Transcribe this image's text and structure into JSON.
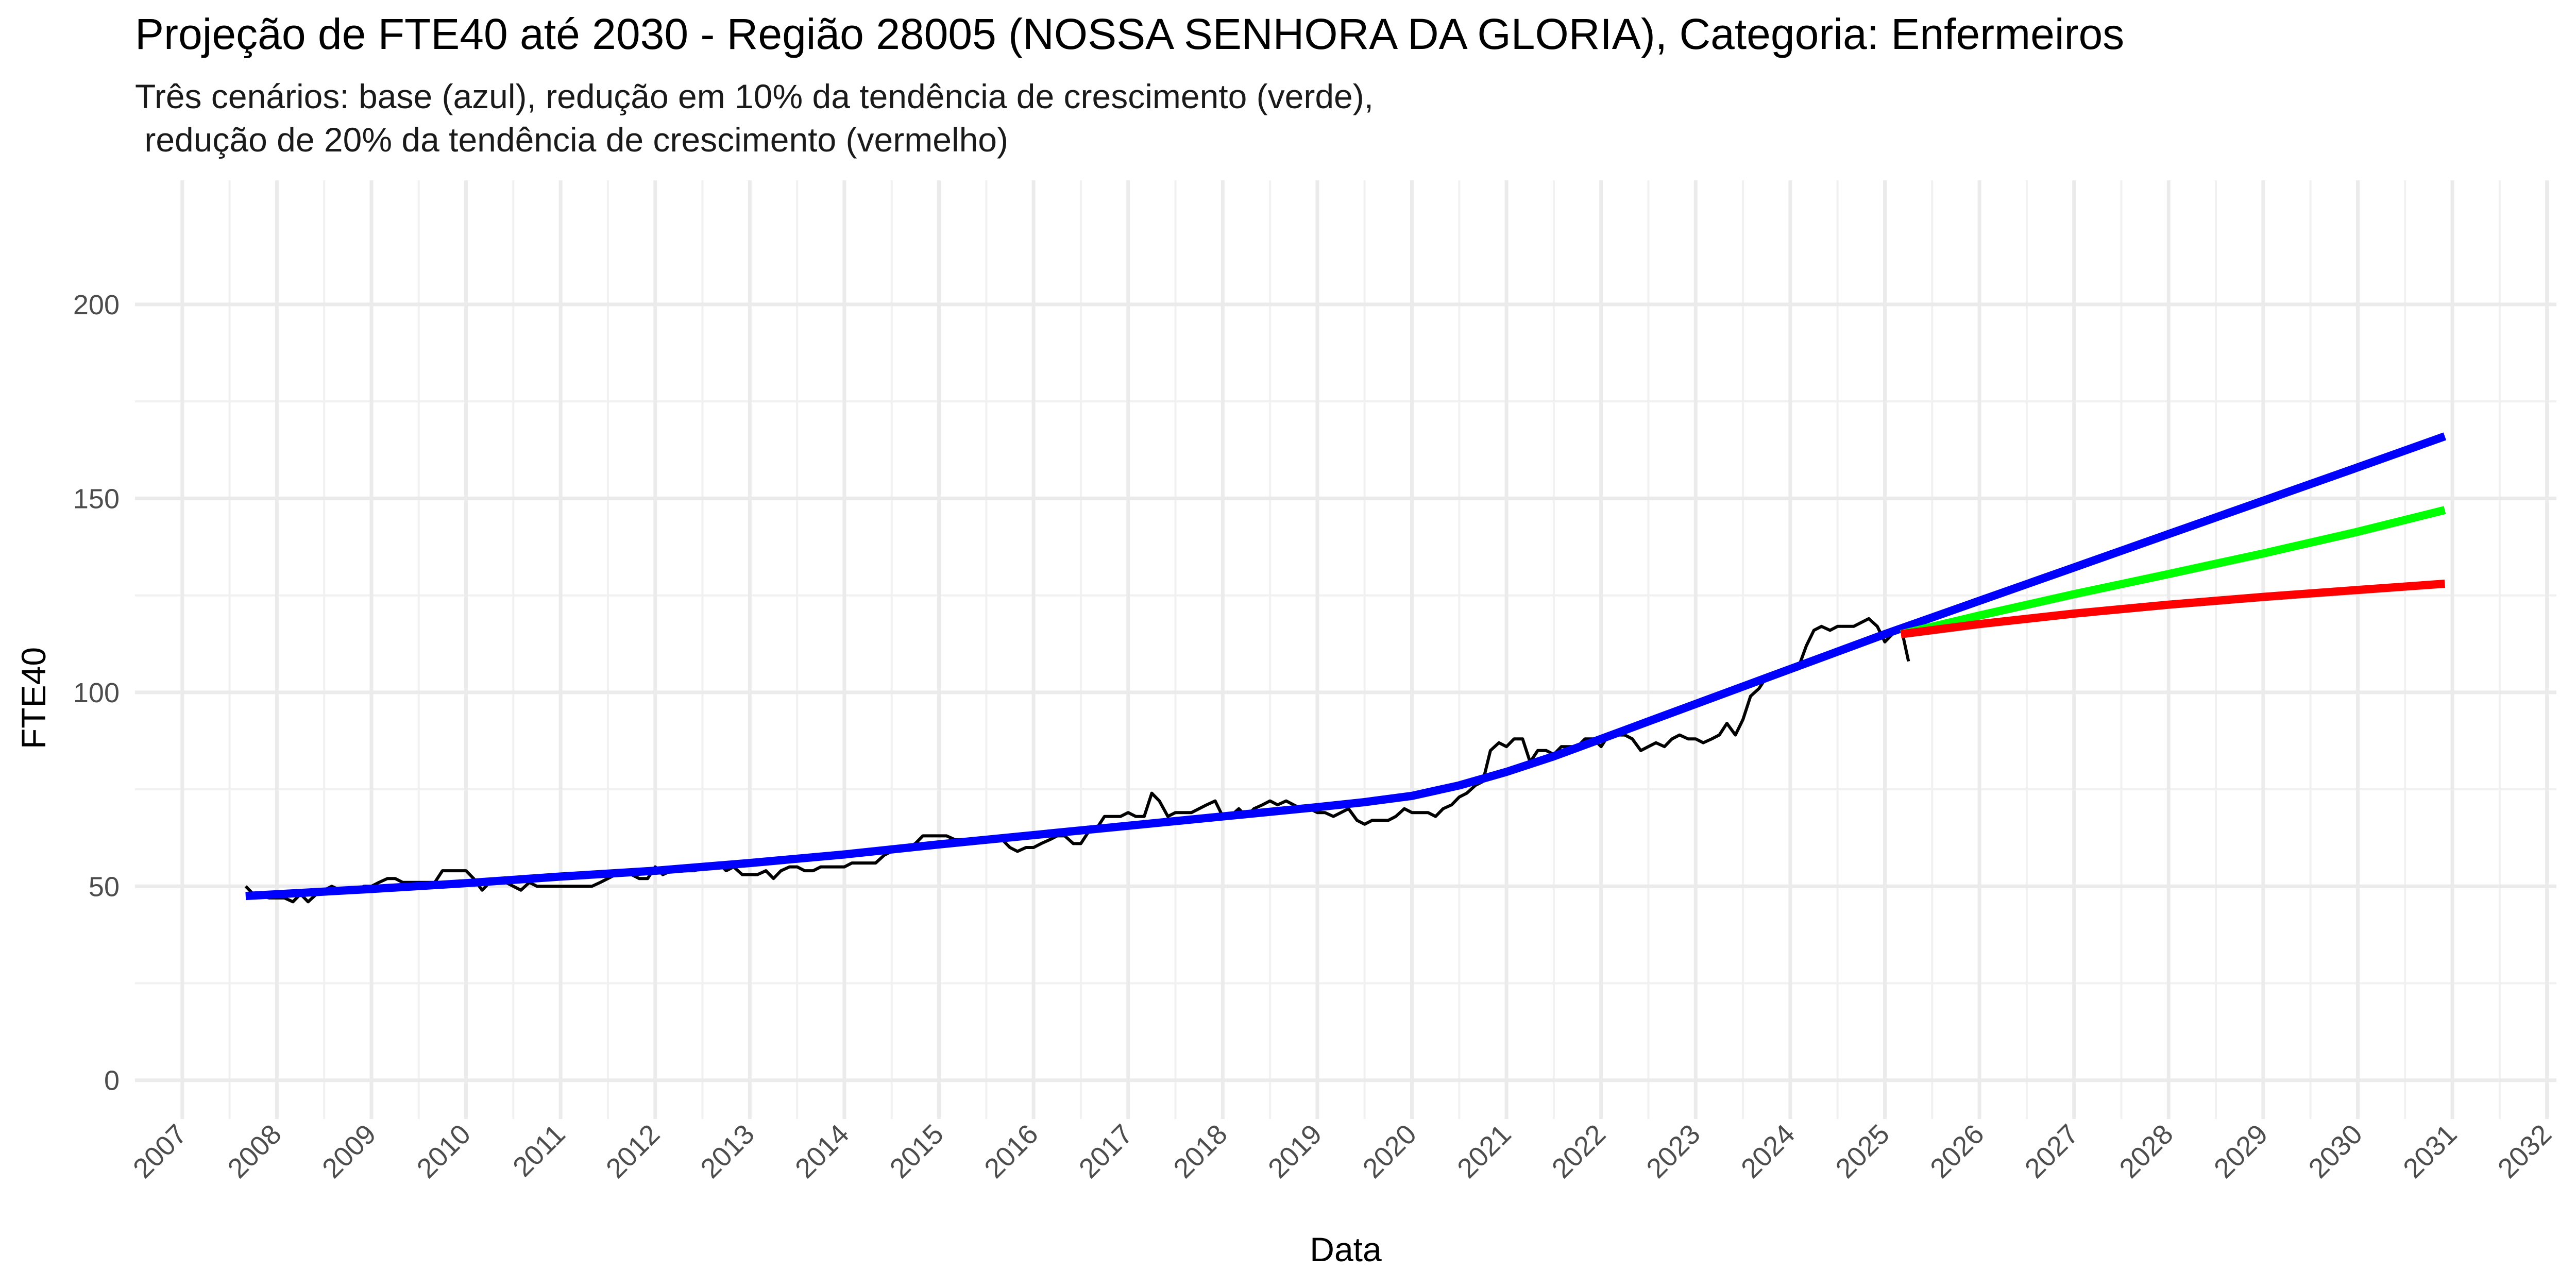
{
  "chart_data": {
    "type": "line",
    "title": "Projeção de FTE40 até 2030 - Região 28005 (NOSSA SENHORA DA GLORIA), Categoria: Enfermeiros",
    "subtitle": "Três cenários: base (azul), redução em 10% da tendência de crescimento (verde),\n redução de 20% da tendência de crescimento (vermelho)",
    "xlabel": "Data",
    "ylabel": "FTE40",
    "x_type": "date-year",
    "xlim": [
      2006.5,
      2032.1
    ],
    "ylim": [
      -10,
      232
    ],
    "x_ticks": [
      "2007",
      "2008",
      "2009",
      "2010",
      "2011",
      "2012",
      "2013",
      "2014",
      "2015",
      "2016",
      "2017",
      "2018",
      "2019",
      "2020",
      "2021",
      "2022",
      "2023",
      "2024",
      "2025",
      "2026",
      "2027",
      "2028",
      "2029",
      "2030",
      "2031",
      "2032"
    ],
    "y_ticks": [
      0,
      50,
      100,
      150,
      200
    ],
    "grid": true,
    "legend": "none",
    "series": [
      {
        "color": "#000000",
        "points": [
          [
            2007.67,
            50
          ],
          [
            2007.75,
            48
          ],
          [
            2007.92,
            47
          ],
          [
            2008.0,
            47
          ],
          [
            2008.08,
            47
          ],
          [
            2008.17,
            46
          ],
          [
            2008.25,
            48
          ],
          [
            2008.33,
            46
          ],
          [
            2008.42,
            48
          ],
          [
            2008.5,
            49
          ],
          [
            2008.58,
            50
          ],
          [
            2008.67,
            49
          ],
          [
            2008.75,
            49
          ],
          [
            2008.83,
            49
          ],
          [
            2008.92,
            50
          ],
          [
            2009.0,
            50
          ],
          [
            2009.08,
            51
          ],
          [
            2009.17,
            52
          ],
          [
            2009.25,
            52
          ],
          [
            2009.33,
            51
          ],
          [
            2009.42,
            51
          ],
          [
            2009.5,
            51
          ],
          [
            2009.58,
            51
          ],
          [
            2009.67,
            51
          ],
          [
            2009.75,
            54
          ],
          [
            2009.83,
            54
          ],
          [
            2009.92,
            54
          ],
          [
            2010.0,
            54
          ],
          [
            2010.08,
            52
          ],
          [
            2010.17,
            49
          ],
          [
            2010.25,
            51
          ],
          [
            2010.33,
            51
          ],
          [
            2010.42,
            51
          ],
          [
            2010.5,
            50
          ],
          [
            2010.58,
            49
          ],
          [
            2010.67,
            51
          ],
          [
            2010.75,
            50
          ],
          [
            2010.83,
            50
          ],
          [
            2010.92,
            50
          ],
          [
            2011.0,
            50
          ],
          [
            2011.08,
            50
          ],
          [
            2011.17,
            50
          ],
          [
            2011.25,
            50
          ],
          [
            2011.33,
            50
          ],
          [
            2011.42,
            51
          ],
          [
            2011.5,
            52
          ],
          [
            2011.58,
            53
          ],
          [
            2011.67,
            53
          ],
          [
            2011.75,
            53
          ],
          [
            2011.83,
            52
          ],
          [
            2011.92,
            52
          ],
          [
            2012.0,
            55
          ],
          [
            2012.08,
            53
          ],
          [
            2012.17,
            54
          ],
          [
            2012.25,
            54
          ],
          [
            2012.33,
            54
          ],
          [
            2012.42,
            54
          ],
          [
            2012.5,
            55
          ],
          [
            2012.58,
            55
          ],
          [
            2012.67,
            56
          ],
          [
            2012.75,
            54
          ],
          [
            2012.83,
            55
          ],
          [
            2012.92,
            53
          ],
          [
            2013.0,
            53
          ],
          [
            2013.08,
            53
          ],
          [
            2013.17,
            54
          ],
          [
            2013.25,
            52
          ],
          [
            2013.33,
            54
          ],
          [
            2013.42,
            55
          ],
          [
            2013.5,
            55
          ],
          [
            2013.58,
            54
          ],
          [
            2013.67,
            54
          ],
          [
            2013.75,
            55
          ],
          [
            2013.83,
            55
          ],
          [
            2013.92,
            55
          ],
          [
            2014.0,
            55
          ],
          [
            2014.08,
            56
          ],
          [
            2014.17,
            56
          ],
          [
            2014.25,
            56
          ],
          [
            2014.33,
            56
          ],
          [
            2014.42,
            58
          ],
          [
            2014.5,
            59
          ],
          [
            2014.58,
            60
          ],
          [
            2014.67,
            60
          ],
          [
            2014.75,
            61
          ],
          [
            2014.83,
            63
          ],
          [
            2014.92,
            63
          ],
          [
            2015.0,
            63
          ],
          [
            2015.08,
            63
          ],
          [
            2015.17,
            62
          ],
          [
            2015.25,
            62
          ],
          [
            2015.33,
            62
          ],
          [
            2015.42,
            62
          ],
          [
            2015.5,
            62
          ],
          [
            2015.58,
            62
          ],
          [
            2015.67,
            62
          ],
          [
            2015.75,
            60
          ],
          [
            2015.83,
            59
          ],
          [
            2015.92,
            60
          ],
          [
            2016.0,
            60
          ],
          [
            2016.08,
            61
          ],
          [
            2016.17,
            62
          ],
          [
            2016.25,
            63
          ],
          [
            2016.33,
            63
          ],
          [
            2016.42,
            61
          ],
          [
            2016.5,
            61
          ],
          [
            2016.58,
            64
          ],
          [
            2016.67,
            65
          ],
          [
            2016.75,
            68
          ],
          [
            2016.83,
            68
          ],
          [
            2016.92,
            68
          ],
          [
            2017.0,
            69
          ],
          [
            2017.08,
            68
          ],
          [
            2017.17,
            68
          ],
          [
            2017.25,
            74
          ],
          [
            2017.33,
            72
          ],
          [
            2017.42,
            68
          ],
          [
            2017.5,
            69
          ],
          [
            2017.58,
            69
          ],
          [
            2017.67,
            69
          ],
          [
            2017.75,
            70
          ],
          [
            2017.83,
            71
          ],
          [
            2017.92,
            72
          ],
          [
            2018.0,
            68
          ],
          [
            2018.08,
            68
          ],
          [
            2018.17,
            70
          ],
          [
            2018.25,
            68
          ],
          [
            2018.33,
            70
          ],
          [
            2018.42,
            71
          ],
          [
            2018.5,
            72
          ],
          [
            2018.58,
            71
          ],
          [
            2018.67,
            72
          ],
          [
            2018.75,
            71
          ],
          [
            2018.83,
            70
          ],
          [
            2018.92,
            70
          ],
          [
            2019.0,
            69
          ],
          [
            2019.08,
            69
          ],
          [
            2019.17,
            68
          ],
          [
            2019.25,
            69
          ],
          [
            2019.33,
            70
          ],
          [
            2019.42,
            67
          ],
          [
            2019.5,
            66
          ],
          [
            2019.58,
            67
          ],
          [
            2019.67,
            67
          ],
          [
            2019.75,
            67
          ],
          [
            2019.83,
            68
          ],
          [
            2019.92,
            70
          ],
          [
            2020.0,
            69
          ],
          [
            2020.08,
            69
          ],
          [
            2020.17,
            69
          ],
          [
            2020.25,
            68
          ],
          [
            2020.33,
            70
          ],
          [
            2020.42,
            71
          ],
          [
            2020.5,
            73
          ],
          [
            2020.58,
            74
          ],
          [
            2020.67,
            76
          ],
          [
            2020.75,
            77
          ],
          [
            2020.83,
            85
          ],
          [
            2020.92,
            87
          ],
          [
            2021.0,
            86
          ],
          [
            2021.08,
            88
          ],
          [
            2021.17,
            88
          ],
          [
            2021.25,
            82
          ],
          [
            2021.33,
            85
          ],
          [
            2021.42,
            85
          ],
          [
            2021.5,
            84
          ],
          [
            2021.58,
            86
          ],
          [
            2021.67,
            86
          ],
          [
            2021.75,
            86
          ],
          [
            2021.83,
            88
          ],
          [
            2021.92,
            88
          ],
          [
            2022.0,
            86
          ],
          [
            2022.08,
            89
          ],
          [
            2022.17,
            89
          ],
          [
            2022.25,
            89
          ],
          [
            2022.33,
            88
          ],
          [
            2022.42,
            85
          ],
          [
            2022.5,
            86
          ],
          [
            2022.58,
            87
          ],
          [
            2022.67,
            86
          ],
          [
            2022.75,
            88
          ],
          [
            2022.83,
            89
          ],
          [
            2022.92,
            88
          ],
          [
            2023.0,
            88
          ],
          [
            2023.08,
            87
          ],
          [
            2023.17,
            88
          ],
          [
            2023.25,
            89
          ],
          [
            2023.33,
            92
          ],
          [
            2023.42,
            89
          ],
          [
            2023.5,
            93
          ],
          [
            2023.58,
            99
          ],
          [
            2023.67,
            101
          ],
          [
            2023.75,
            104
          ],
          [
            2023.83,
            104
          ],
          [
            2023.92,
            105
          ],
          [
            2024.0,
            106
          ],
          [
            2024.08,
            106
          ],
          [
            2024.17,
            112
          ],
          [
            2024.25,
            116
          ],
          [
            2024.33,
            117
          ],
          [
            2024.42,
            116
          ],
          [
            2024.5,
            117
          ],
          [
            2024.58,
            117
          ],
          [
            2024.67,
            117
          ],
          [
            2024.75,
            118
          ],
          [
            2024.83,
            119
          ],
          [
            2024.92,
            117
          ],
          [
            2025.0,
            113
          ],
          [
            2025.08,
            115
          ],
          [
            2025.17,
            117
          ],
          [
            2025.25,
            108
          ]
        ]
      },
      {
        "color": "#0000ff",
        "points": [
          [
            2007.67,
            47.5
          ],
          [
            2009.0,
            49.3
          ],
          [
            2010.0,
            50.8
          ],
          [
            2011.0,
            52.5
          ],
          [
            2012.0,
            54.0
          ],
          [
            2013.0,
            56.0
          ],
          [
            2014.0,
            58.2
          ],
          [
            2015.0,
            60.8
          ],
          [
            2016.0,
            63.2
          ],
          [
            2017.0,
            65.6
          ],
          [
            2018.0,
            68.0
          ],
          [
            2019.0,
            70.4
          ],
          [
            2019.5,
            71.7
          ],
          [
            2020.0,
            73.3
          ],
          [
            2020.5,
            76.0
          ],
          [
            2021.0,
            79.5
          ],
          [
            2021.5,
            83.5
          ],
          [
            2022.0,
            88.0
          ],
          [
            2022.5,
            92.5
          ],
          [
            2023.0,
            97.0
          ],
          [
            2023.5,
            101.5
          ],
          [
            2024.0,
            106.0
          ],
          [
            2024.5,
            110.5
          ],
          [
            2025.0,
            115.0
          ],
          [
            2025.5,
            119.3
          ],
          [
            2026.0,
            123.6
          ],
          [
            2027.0,
            132.2
          ],
          [
            2028.0,
            140.8
          ],
          [
            2029.0,
            149.4
          ],
          [
            2030.0,
            158.0
          ],
          [
            2030.92,
            166.0
          ]
        ]
      },
      {
        "color": "#00ff00",
        "points": [
          [
            2025.17,
            115.0
          ],
          [
            2026.0,
            119.8
          ],
          [
            2027.0,
            125.3
          ],
          [
            2028.0,
            130.5
          ],
          [
            2029.0,
            135.8
          ],
          [
            2030.0,
            141.4
          ],
          [
            2030.92,
            147.0
          ]
        ]
      },
      {
        "color": "#ff0000",
        "points": [
          [
            2025.17,
            115.0
          ],
          [
            2026.0,
            117.6
          ],
          [
            2027.0,
            120.3
          ],
          [
            2028.0,
            122.6
          ],
          [
            2029.0,
            124.6
          ],
          [
            2030.0,
            126.4
          ],
          [
            2030.92,
            128.0
          ]
        ]
      }
    ]
  }
}
